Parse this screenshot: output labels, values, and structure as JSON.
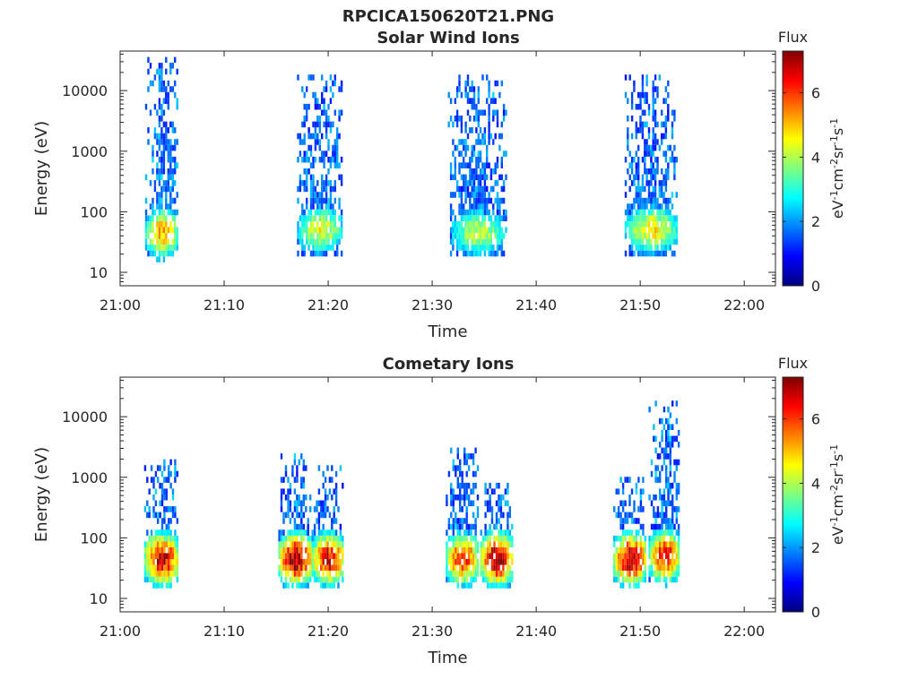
{
  "figure": {
    "file_title": "RPCICA150620T21.PNG"
  },
  "colors": {
    "axis": "#262626",
    "background": "#ffffff",
    "jet": [
      "#00007f",
      "#0000ff",
      "#007fff",
      "#00ffff",
      "#7fff7f",
      "#ffff00",
      "#ff7f00",
      "#ff0000",
      "#7f0000"
    ]
  },
  "chart_data": [
    {
      "type": "heatmap",
      "title": "Solar Wind Ions",
      "xlabel": "Time",
      "ylabel": "Energy (eV)",
      "x_tick_labels": [
        "21:00",
        "21:10",
        "21:20",
        "21:30",
        "21:40",
        "21:50",
        "22:00"
      ],
      "x_tick_minutes": [
        0,
        10,
        20,
        30,
        40,
        50,
        60
      ],
      "xlim_minutes": [
        0,
        63
      ],
      "yscale": "log",
      "ylim": [
        6,
        45000
      ],
      "y_tick_labels": [
        "10",
        "100",
        "1000",
        "10000"
      ],
      "y_tick_values": [
        10,
        100,
        1000,
        10000
      ],
      "colorbar": {
        "title": "Flux",
        "label": "eV-1cm-2sr-1s-1",
        "ticks": [
          0,
          2,
          4,
          6
        ],
        "range": [
          0,
          7.3
        ]
      },
      "bursts": [
        {
          "start_minute": 2.4,
          "end_minute": 5.6,
          "low_energy_peak": 40,
          "peak_flux": 5.2,
          "high_energy_max": 35000
        },
        {
          "start_minute": 17.0,
          "end_minute": 21.4,
          "low_energy_peak": 45,
          "peak_flux": 4.4,
          "high_energy_max": 18000
        },
        {
          "start_minute": 31.5,
          "end_minute": 37.2,
          "low_energy_peak": 40,
          "peak_flux": 4.0,
          "high_energy_max": 18000
        },
        {
          "start_minute": 48.5,
          "end_minute": 53.6,
          "low_energy_peak": 45,
          "peak_flux": 4.6,
          "high_energy_max": 18000
        }
      ]
    },
    {
      "type": "heatmap",
      "title": "Cometary Ions",
      "xlabel": "Time",
      "ylabel": "Energy (eV)",
      "x_tick_labels": [
        "21:00",
        "21:10",
        "21:20",
        "21:30",
        "21:40",
        "21:50",
        "22:00"
      ],
      "x_tick_minutes": [
        0,
        10,
        20,
        30,
        40,
        50,
        60
      ],
      "xlim_minutes": [
        0,
        63
      ],
      "yscale": "log",
      "ylim": [
        6,
        45000
      ],
      "y_tick_labels": [
        "10",
        "100",
        "1000",
        "10000"
      ],
      "y_tick_values": [
        10,
        100,
        1000,
        10000
      ],
      "colorbar": {
        "title": "Flux",
        "label": "eV-1cm-2sr-1s-1",
        "ticks": [
          0,
          2,
          4,
          6
        ],
        "range": [
          0,
          7.3
        ]
      },
      "bursts": [
        {
          "start_minute": 2.3,
          "end_minute": 5.6,
          "low_energy_peak": 40,
          "peak_flux": 6.8,
          "high_energy_max": 1600
        },
        {
          "start_minute": 15.2,
          "end_minute": 18.4,
          "low_energy_peak": 40,
          "peak_flux": 7.2,
          "high_energy_max": 2000
        },
        {
          "start_minute": 18.4,
          "end_minute": 21.5,
          "low_energy_peak": 40,
          "peak_flux": 6.6,
          "high_energy_max": 1400
        },
        {
          "start_minute": 31.3,
          "end_minute": 34.5,
          "low_energy_peak": 40,
          "peak_flux": 6.2,
          "high_energy_max": 2500
        },
        {
          "start_minute": 34.6,
          "end_minute": 37.8,
          "low_energy_peak": 40,
          "peak_flux": 7.2,
          "high_energy_max": 800
        },
        {
          "start_minute": 47.4,
          "end_minute": 50.6,
          "low_energy_peak": 40,
          "peak_flux": 7.0,
          "high_energy_max": 1000
        },
        {
          "start_minute": 50.8,
          "end_minute": 53.8,
          "low_energy_peak": 45,
          "peak_flux": 6.4,
          "high_energy_max": 16000
        }
      ]
    }
  ]
}
